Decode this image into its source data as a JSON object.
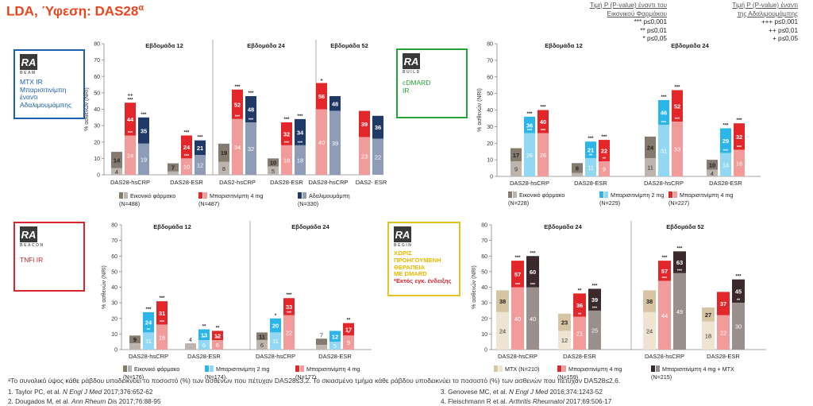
{
  "title": {
    "main": "LDA, Ύφεση: DAS28",
    "sup": "α"
  },
  "pvalue_legend": {
    "placebo": {
      "heading": [
        "Τιμή P (P-value) έναντι του",
        "Εικονικού Φαρμάκου"
      ],
      "lines": [
        "*** p≤0,001",
        "** p≤0,01",
        "* p≤0,05"
      ]
    },
    "adalimumab": {
      "heading": [
        "Τιμή P (P-value) έναντι",
        "της Αδαλιμουμάμπης"
      ],
      "lines": [
        "+++ p≤0,001",
        "++ p≤0,01",
        "+ p≤0,05"
      ]
    }
  },
  "colors": {
    "placebo_dark": "#857a6e",
    "placebo_light": "#bdb5ad",
    "bari4_dark": "#e3262a",
    "bari4_light": "#f29b9b",
    "ada_dark": "#1f3a66",
    "ada_light": "#8e9cb7",
    "bari2_dark": "#2bb5e8",
    "bari2_light": "#93d8f3",
    "mtx_dark": "#d6c4a3",
    "mtx_light": "#efe4d1",
    "combo_dark": "#3a2a2c",
    "combo_light": "#9b8f8d",
    "beam_border": "#1a5fb4",
    "build_border": "#25a337",
    "beacon_border": "#d92430",
    "begin_border": "#e5c124"
  },
  "logos": {
    "beam": {
      "name": "BEAM",
      "text": [
        "MTX IR",
        "Μπαρισιτινίμπη",
        "έναντι",
        "Αδαλιμουμάμπης"
      ]
    },
    "build": {
      "name": "BUILD",
      "text": [
        "cDMARD",
        "IR"
      ]
    },
    "beacon": {
      "name": "BEACON",
      "text": [
        "TNFi IR"
      ]
    },
    "begin": {
      "name": "BEGIN",
      "text": [
        "ΧΩΡΙΣ",
        "ΠΡΟΗΓΟΥΜΕΝΗ",
        "ΘΕΡΑΠΕΙΑ",
        "ΜΕ DMARD"
      ],
      "note": "*Εκτός εγκ. ένδειξης"
    }
  },
  "chart_data": [
    {
      "id": "beam",
      "type": "bar",
      "ylabel": "% ασθενών (NRI)",
      "ylim": [
        0,
        80
      ],
      "yticks": [
        0,
        10,
        20,
        30,
        40,
        50,
        60,
        70,
        80
      ],
      "weeks": [
        "Εβδομάδα 12",
        "Εβδομάδα 24",
        "Εβδομάδα 52"
      ],
      "groups": [
        {
          "label": "DAS28-hsCRP",
          "bars": [
            {
              "c": "placebo",
              "total": 14,
              "inner": 4
            },
            {
              "c": "bari4",
              "total": 44,
              "inner": 24,
              "top": "++\n***",
              "mid": "***"
            },
            {
              "c": "ada",
              "total": 35,
              "inner": 19,
              "top": "***"
            }
          ]
        },
        {
          "label": "DAS28-ESR",
          "bars": [
            {
              "c": "placebo",
              "total": 7,
              "inner": 2
            },
            {
              "c": "bari4",
              "total": 24,
              "inner": 10,
              "top": "***",
              "mid": "***"
            },
            {
              "c": "ada",
              "total": 21,
              "inner": 12,
              "top": "***"
            }
          ]
        },
        {
          "label": "DAS2-hsCRP",
          "bars": [
            {
              "c": "placebo",
              "total": 19,
              "inner": 8
            },
            {
              "c": "bari4",
              "total": 52,
              "inner": 34,
              "top": "***",
              "mid": "***"
            },
            {
              "c": "ada",
              "total": 48,
              "inner": 32,
              "top": "***",
              "mid": "***"
            }
          ]
        },
        {
          "label": "DAS28-ESR",
          "bars": [
            {
              "c": "placebo",
              "total": 10,
              "inner": 5
            },
            {
              "c": "bari4",
              "total": 32,
              "inner": 18,
              "top": "***",
              "mid": "***"
            },
            {
              "c": "ada",
              "total": 34,
              "inner": 18,
              "top": "***",
              "mid": "***"
            }
          ]
        },
        {
          "label": "DAS28-hsCRP",
          "bars": [
            {
              "c": "bari4",
              "total": 56,
              "inner": 40,
              "top": "+"
            },
            {
              "c": "ada",
              "total": 48,
              "inner": 39
            }
          ]
        },
        {
          "label": "DAS2- ESR",
          "bars": [
            {
              "c": "bari4",
              "total": 39,
              "inner": 23
            },
            {
              "c": "ada",
              "total": 36,
              "inner": 22
            }
          ]
        }
      ],
      "legend": [
        {
          "c": "placebo",
          "label": "Εικονικό φάρμακο",
          "n": "(N=488)"
        },
        {
          "c": "bari4",
          "label": "Μπαρισιτινίμπη 4 mg",
          "n": "(N=487)"
        },
        {
          "c": "ada",
          "label": "Αδαλιμουμάμπη",
          "n": "(N=330)"
        }
      ]
    },
    {
      "id": "build",
      "type": "bar",
      "ylabel": "% ασθενών (NRI)",
      "ylim": [
        0,
        80
      ],
      "yticks": [
        0,
        10,
        20,
        30,
        40,
        50,
        60,
        70,
        80
      ],
      "weeks": [
        "Εβδομάδα 12",
        "Εβδομάδα 24"
      ],
      "groups": [
        {
          "label": "DAS28-hsCRP",
          "bars": [
            {
              "c": "placebo",
              "total": 17,
              "inner": 9
            },
            {
              "c": "bari2",
              "total": 36,
              "inner": 26,
              "top": "***",
              "mid": "***"
            },
            {
              "c": "bari4",
              "total": 40,
              "inner": 26,
              "top": "***",
              "mid": "***"
            }
          ]
        },
        {
          "label": "DAS28-ESR",
          "bars": [
            {
              "c": "placebo",
              "total": 8,
              "inner": 2
            },
            {
              "c": "bari2",
              "total": 21,
              "inner": 11,
              "top": "***",
              "mid": "**"
            },
            {
              "c": "bari4",
              "total": 22,
              "inner": 9,
              "top": "***",
              "mid": "**"
            }
          ]
        },
        {
          "label": "DAS28-hsCRP",
          "bars": [
            {
              "c": "placebo",
              "total": 24,
              "inner": 11
            },
            {
              "c": "bari2",
              "total": 46,
              "inner": 31,
              "top": "***",
              "mid": "***"
            },
            {
              "c": "bari4",
              "total": 52,
              "inner": 33,
              "top": "***",
              "mid": "***"
            }
          ]
        },
        {
          "label": "DAS28-ESR",
          "bars": [
            {
              "c": "placebo",
              "total": 10,
              "inner": 4
            },
            {
              "c": "bari2",
              "total": 29,
              "inner": 14,
              "top": "***",
              "mid": "***"
            },
            {
              "c": "bari4",
              "total": 32,
              "inner": 16,
              "top": "***",
              "mid": "***"
            }
          ]
        }
      ],
      "legend": [
        {
          "c": "placebo",
          "label": "Εικονικό φάρμακο",
          "n": "(N=228)"
        },
        {
          "c": "bari2",
          "label": "Μπαρισιτινίμπη 2 mg",
          "n": "(N=229)"
        },
        {
          "c": "bari4",
          "label": "Μπαρισιτινίμπη 4 mg",
          "n": "(N=227)"
        }
      ]
    },
    {
      "id": "beacon",
      "type": "bar",
      "ylabel": "% ασθενών (NRI)",
      "ylim": [
        0,
        80
      ],
      "yticks": [
        0,
        10,
        20,
        30,
        40,
        50,
        60,
        70,
        80
      ],
      "weeks": [
        "Εβδομάδα 12",
        "Εβδομάδα 24"
      ],
      "groups": [
        {
          "label": "DAS28-hsCRP",
          "bars": [
            {
              "c": "placebo",
              "total": 9,
              "inner": 4
            },
            {
              "c": "bari2",
              "total": 24,
              "inner": 11,
              "top": "***",
              "mid": "**"
            },
            {
              "c": "bari4",
              "total": 31,
              "inner": 16,
              "top": "***",
              "mid": "***"
            }
          ]
        },
        {
          "label": "DAS28-ESR",
          "bars": [
            {
              "c": "placebo",
              "total": 4,
              "inner": 4
            },
            {
              "c": "bari2",
              "total": 13,
              "inner": 6,
              "top": "**",
              "mid": "*"
            },
            {
              "c": "bari4",
              "total": 12,
              "inner": 6,
              "top": "**",
              "mid": "*"
            }
          ]
        },
        {
          "label": "DAS28-hsCRP",
          "bars": [
            {
              "c": "placebo",
              "total": 11,
              "inner": 6
            },
            {
              "c": "bari2",
              "total": 20,
              "inner": 11,
              "top": "*"
            },
            {
              "c": "bari4",
              "total": 33,
              "inner": 22,
              "top": "***",
              "mid": "***"
            }
          ]
        },
        {
          "label": "DAS28-ESR",
          "bars": [
            {
              "c": "placebo",
              "total": 7,
              "inner": 3
            },
            {
              "c": "bari2",
              "total": 12,
              "inner": 5
            },
            {
              "c": "bari4",
              "total": 17,
              "inner": 9,
              "top": "**",
              "mid": "*"
            }
          ]
        }
      ],
      "legend": [
        {
          "c": "placebo",
          "label": "Εικονικό φάρμακο",
          "n": "(N=176)"
        },
        {
          "c": "bari2",
          "label": "Μπαρισιτινίμπη 2 mg",
          "n": "(N=174)"
        },
        {
          "c": "bari4",
          "label": "Μπαρισιτινίμπη 4 mg",
          "n": "(N=177)"
        }
      ]
    },
    {
      "id": "begin",
      "type": "bar",
      "ylabel": "% ασθενών (NRI)",
      "ylim": [
        0,
        80
      ],
      "yticks": [
        0,
        10,
        20,
        30,
        40,
        50,
        60,
        70,
        80
      ],
      "weeks": [
        "Εβδομάδα 24",
        "Εβδομάδα 52"
      ],
      "groups": [
        {
          "label": "DAS28-hsCRP",
          "bars": [
            {
              "c": "mtx",
              "total": 38,
              "inner": 24
            },
            {
              "c": "bari4",
              "total": 57,
              "inner": 40,
              "top": "***",
              "mid": "***"
            },
            {
              "c": "combo",
              "total": 60,
              "inner": 40,
              "top": "***",
              "mid": "***"
            }
          ]
        },
        {
          "label": "DAS28-ESR",
          "bars": [
            {
              "c": "mtx",
              "total": 23,
              "inner": 12
            },
            {
              "c": "bari4",
              "total": 36,
              "inner": 21,
              "top": "**",
              "mid": "**"
            },
            {
              "c": "combo",
              "total": 39,
              "inner": 25,
              "top": "***",
              "mid": "***"
            }
          ]
        },
        {
          "label": "DAS28-hsCRP",
          "bars": [
            {
              "c": "mtx",
              "total": 38,
              "inner": 24
            },
            {
              "c": "bari4",
              "total": 57,
              "inner": 44,
              "top": "***",
              "mid": "***"
            },
            {
              "c": "combo",
              "total": 63,
              "inner": 49,
              "top": "***",
              "mid": "***"
            }
          ]
        },
        {
          "label": "DAS28-ESR",
          "bars": [
            {
              "c": "mtx",
              "total": 27,
              "inner": 18
            },
            {
              "c": "bari4",
              "total": 37,
              "inner": 22
            },
            {
              "c": "combo",
              "total": 45,
              "inner": 30,
              "top": "***",
              "mid": "**"
            }
          ]
        }
      ],
      "legend": [
        {
          "c": "mtx",
          "label": "MTX (N=210)",
          "n": ""
        },
        {
          "c": "bari4",
          "label": "Μπαρισιτινίμπη 4 mg",
          "n": "(N=159)"
        },
        {
          "c": "combo",
          "label": "Μπαρισιτινίμπη 4 mg + MTX",
          "n": "(N=215)"
        }
      ]
    }
  ],
  "footnote": "ᵃΤο συνολικό ύψος κάθε ράβδου υποδεικνύει το ποσοστό (%) των ασθενών που πέτυχαν DAS28≤3,2. Το σκιασμένο τμήμα κάθε ράβδου υποδεικνύει το ποσοστό (%) των ασθενών που πέτυχαν DAS28≤2,6.",
  "references": [
    {
      "pre": "1. Taylor PC, et al. ",
      "journal": "N Engl J Med",
      "post": " 2017;376:652-62"
    },
    {
      "pre": "2. Dougados M, et al. ",
      "journal": "Ann Rheum Dis",
      "post": " 2017;76:88-95"
    },
    {
      "pre": "3. Genovese MC, et al. ",
      "journal": "N Engl J Med",
      "post": " 2016;374:1243-52"
    },
    {
      "pre": "4. Fleischmann R et al. ",
      "journal": "Arthritis Rheumatol",
      "post": " 2017;69:506-17"
    }
  ]
}
